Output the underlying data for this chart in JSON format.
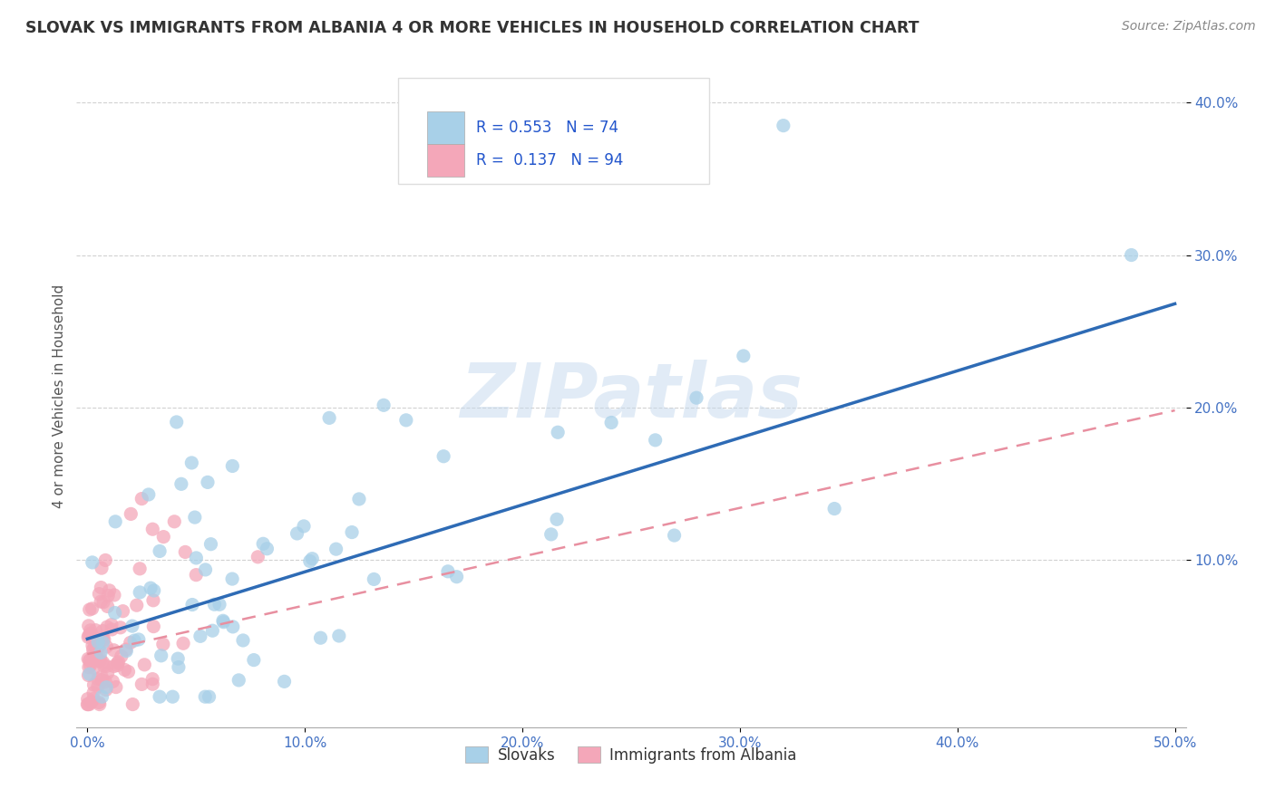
{
  "title": "SLOVAK VS IMMIGRANTS FROM ALBANIA 4 OR MORE VEHICLES IN HOUSEHOLD CORRELATION CHART",
  "source": "Source: ZipAtlas.com",
  "ylabel": "4 or more Vehicles in Household",
  "xlim": [
    -0.005,
    0.505
  ],
  "ylim": [
    -0.01,
    0.425
  ],
  "xtick_labels": [
    "0.0%",
    "10.0%",
    "20.0%",
    "30.0%",
    "40.0%",
    "50.0%"
  ],
  "xtick_vals": [
    0.0,
    0.1,
    0.2,
    0.3,
    0.4,
    0.5
  ],
  "ytick_labels": [
    "10.0%",
    "20.0%",
    "30.0%",
    "40.0%"
  ],
  "ytick_vals": [
    0.1,
    0.2,
    0.3,
    0.4
  ],
  "legend_slovak_r": "0.553",
  "legend_slovak_n": "74",
  "legend_albanian_r": "0.137",
  "legend_albanian_n": "94",
  "slovak_color": "#A8D0E8",
  "albanian_color": "#F4A7B9",
  "slovak_line_color": "#2E6BB5",
  "albanian_line_color": "#E88FA0",
  "watermark_color": "#C5D9EE",
  "background_color": "#FFFFFF",
  "grid_color": "#CCCCCC",
  "title_color": "#333333",
  "tick_color": "#4472C4",
  "sk_line_intercept": 0.048,
  "sk_line_slope": 0.44,
  "al_line_intercept": 0.038,
  "al_line_slope": 0.32
}
